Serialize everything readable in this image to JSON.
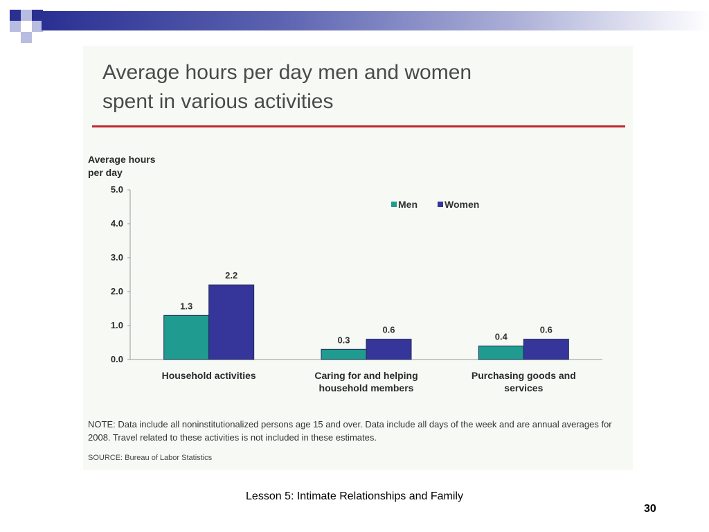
{
  "slide": {
    "footer_title": "Lesson 5: Intimate Relationships and Family",
    "page_number": "30"
  },
  "colors": {
    "men": "#1f9b8f",
    "women": "#35359a",
    "accent_rule": "#c0262d",
    "bar_outline": "#1f2a5a"
  },
  "chart_data": {
    "type": "bar",
    "title_lines": [
      "Average hours per day men and women",
      "spent in various activities"
    ],
    "ylabel_lines": [
      "Average hours",
      "per day"
    ],
    "categories": [
      [
        "Household activities"
      ],
      [
        "Caring for and helping",
        "household members"
      ],
      [
        "Purchasing goods and",
        "services"
      ]
    ],
    "series": [
      {
        "name": "Men",
        "values": [
          1.3,
          0.3,
          0.4
        ]
      },
      {
        "name": "Women",
        "values": [
          2.2,
          0.6,
          0.6
        ]
      }
    ],
    "ylim": [
      0,
      5
    ],
    "yticks": [
      "0.0",
      "1.0",
      "2.0",
      "3.0",
      "4.0",
      "5.0"
    ],
    "legend": "top-right",
    "note": "NOTE: Data include all noninstitutionalized persons age 15 and over. Data include all days of the week and are annual averages for 2008. Travel related to these activities is not included in these estimates.",
    "source": "SOURCE: Bureau of Labor Statistics"
  }
}
